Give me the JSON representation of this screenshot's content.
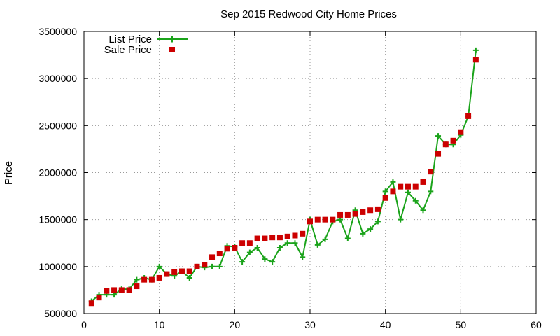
{
  "chart_data": {
    "type": "line",
    "title": "Sep 2015 Redwood City Home Prices",
    "xlabel": "",
    "ylabel": "Price",
    "xlim": [
      0,
      60
    ],
    "ylim": [
      500000,
      3500000
    ],
    "xticks": [
      0,
      10,
      20,
      30,
      40,
      50,
      60
    ],
    "yticks": [
      500000,
      1000000,
      1500000,
      2000000,
      2500000,
      3000000,
      3500000
    ],
    "xtick_labels": [
      "0",
      "10",
      "20",
      "30",
      "40",
      "50",
      "60"
    ],
    "ytick_labels": [
      "500000",
      "1000000",
      "1500000",
      "2000000",
      "2500000",
      "3000000",
      "3500000"
    ],
    "grid": true,
    "legend_position": "top-left",
    "x": [
      1,
      2,
      3,
      4,
      5,
      6,
      7,
      8,
      9,
      10,
      11,
      12,
      13,
      14,
      15,
      16,
      17,
      18,
      19,
      20,
      21,
      22,
      23,
      24,
      25,
      26,
      27,
      28,
      29,
      30,
      31,
      32,
      33,
      34,
      35,
      36,
      37,
      38,
      39,
      40,
      41,
      42,
      43,
      44,
      45,
      46,
      47,
      48,
      49,
      50,
      51,
      52
    ],
    "series": [
      {
        "name": "List Price",
        "style": "line-plus",
        "color": "#1aa31a",
        "values": [
          630000,
          700000,
          700000,
          700000,
          760000,
          760000,
          860000,
          880000,
          860000,
          1000000,
          920000,
          900000,
          950000,
          880000,
          1000000,
          990000,
          1000000,
          1000000,
          1220000,
          1210000,
          1050000,
          1150000,
          1200000,
          1080000,
          1050000,
          1200000,
          1250000,
          1250000,
          1100000,
          1500000,
          1230000,
          1290000,
          1480000,
          1500000,
          1300000,
          1600000,
          1350000,
          1400000,
          1480000,
          1800000,
          1900000,
          1500000,
          1790000,
          1700000,
          1600000,
          1800000,
          2390000,
          2300000,
          2300000,
          2400000,
          2600000,
          3300000
        ]
      },
      {
        "name": "Sale Price",
        "style": "square-markers",
        "color": "#cc0000",
        "values": [
          610000,
          670000,
          740000,
          750000,
          750000,
          750000,
          790000,
          860000,
          860000,
          880000,
          920000,
          940000,
          950000,
          950000,
          1000000,
          1020000,
          1100000,
          1140000,
          1190000,
          1200000,
          1250000,
          1250000,
          1300000,
          1300000,
          1310000,
          1310000,
          1320000,
          1330000,
          1350000,
          1480000,
          1500000,
          1500000,
          1500000,
          1550000,
          1550000,
          1560000,
          1580000,
          1600000,
          1610000,
          1730000,
          1800000,
          1850000,
          1850000,
          1850000,
          1900000,
          2010000,
          2200000,
          2300000,
          2340000,
          2430000,
          2600000,
          3200000
        ]
      }
    ]
  }
}
